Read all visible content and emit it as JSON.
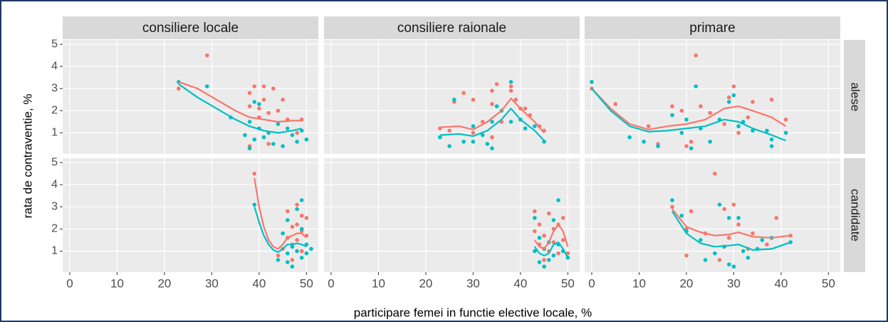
{
  "chart_data": {
    "type": "scatter",
    "x_label": "participare femei in functie elective locale, %",
    "y_label": "rata de contraventie, %",
    "columns": [
      "consiliere locale",
      "consiliere raionale",
      "primare"
    ],
    "rows": [
      "alese",
      "candidate"
    ],
    "xlim": [
      -1.5,
      52.5
    ],
    "xticks": [
      0,
      10,
      20,
      30,
      40,
      50
    ],
    "ylim": [
      0.05,
      5.2
    ],
    "yticks": [
      1,
      2,
      3,
      4,
      5
    ],
    "grid": true,
    "panels": [
      [
        {
          "points": [
            {
              "color": "#F8766D",
              "x": [
                23,
                29,
                38,
                38,
                39,
                40,
                40,
                41,
                41,
                42,
                43,
                44,
                45,
                46,
                48,
                49,
                38,
                42
              ],
              "values": [
                3.0,
                4.5,
                2.8,
                2.2,
                3.1,
                2.1,
                1.7,
                3.1,
                2.5,
                1.9,
                3.0,
                2.0,
                2.5,
                1.6,
                1.0,
                1.6,
                0.4,
                0.5
              ]
            },
            {
              "color": "#00BFC4",
              "x": [
                23,
                29,
                34,
                37,
                38,
                38,
                39,
                39,
                40,
                40,
                41,
                42,
                43,
                44,
                45,
                46,
                47,
                48,
                49,
                50
              ],
              "values": [
                3.3,
                3.1,
                1.7,
                0.9,
                0.3,
                1.5,
                2.4,
                0.7,
                2.3,
                1.2,
                0.8,
                1.0,
                0.5,
                1.4,
                0.4,
                1.2,
                0.9,
                0.6,
                1.1,
                0.7
              ]
            }
          ],
          "smooth": [
            {
              "color": "#F8766D",
              "x": [
                23,
                27,
                31,
                35,
                38,
                41,
                44,
                47,
                49
              ],
              "values": [
                3.3,
                3.0,
                2.5,
                2.0,
                1.7,
                1.6,
                1.5,
                1.55,
                1.55
              ]
            },
            {
              "color": "#00BFC4",
              "x": [
                23,
                27,
                31,
                35,
                38,
                41,
                44,
                47,
                49
              ],
              "values": [
                3.2,
                2.6,
                2.1,
                1.6,
                1.3,
                1.1,
                1.0,
                1.1,
                1.2
              ]
            }
          ]
        },
        {
          "points": [
            {
              "color": "#F8766D",
              "x": [
                23,
                25,
                26,
                28,
                30,
                30,
                32,
                34,
                34,
                34,
                35,
                36,
                38,
                38,
                39,
                40,
                41,
                42,
                44,
                45
              ],
              "values": [
                1.2,
                1.1,
                2.4,
                2.8,
                1.0,
                2.5,
                1.5,
                2.9,
                2.3,
                0.8,
                3.2,
                1.5,
                3.1,
                2.9,
                2.5,
                2.1,
                2.1,
                1.8,
                1.3,
                1.1
              ]
            },
            {
              "color": "#00BFC4",
              "x": [
                23,
                25,
                26,
                28,
                30,
                30,
                32,
                33,
                34,
                34,
                35,
                36,
                38,
                38,
                40,
                41,
                43,
                45
              ],
              "values": [
                0.8,
                0.4,
                2.5,
                0.6,
                0.6,
                1.3,
                0.9,
                0.5,
                0.3,
                1.5,
                2.2,
                2.0,
                3.3,
                1.5,
                1.6,
                1.2,
                1.3,
                0.6
              ]
            }
          ],
          "smooth": [
            {
              "color": "#F8766D",
              "x": [
                23,
                27,
                30,
                33,
                36,
                38,
                40,
                43,
                45
              ],
              "values": [
                1.25,
                1.3,
                1.15,
                1.5,
                2.0,
                2.55,
                2.1,
                1.5,
                1.0
              ]
            },
            {
              "color": "#00BFC4",
              "x": [
                23,
                27,
                30,
                33,
                36,
                38,
                40,
                43,
                45
              ],
              "values": [
                0.9,
                0.95,
                0.85,
                1.1,
                1.6,
                2.1,
                1.6,
                1.1,
                0.65
              ]
            }
          ]
        },
        {
          "points": [
            {
              "color": "#F8766D",
              "x": [
                0,
                5,
                12,
                14,
                17,
                19,
                20,
                21,
                22,
                23,
                25,
                28,
                29,
                30,
                31,
                33,
                34,
                38,
                41
              ],
              "values": [
                3.0,
                2.3,
                1.3,
                0.5,
                2.2,
                2.0,
                0.4,
                0.6,
                4.5,
                2.2,
                1.9,
                1.4,
                2.6,
                3.1,
                1.0,
                1.7,
                2.4,
                2.5,
                1.6
              ]
            },
            {
              "color": "#00BFC4",
              "x": [
                0,
                8,
                11,
                14,
                17,
                19,
                20,
                21,
                22,
                23,
                25,
                27,
                29,
                30,
                31,
                32,
                34,
                37,
                38,
                38,
                41
              ],
              "values": [
                3.3,
                0.8,
                0.6,
                0.4,
                1.8,
                1.0,
                1.6,
                0.3,
                3.1,
                1.2,
                0.6,
                1.6,
                2.4,
                2.7,
                1.3,
                1.5,
                1.1,
                1.1,
                0.4,
                0.7,
                1.0
              ]
            }
          ],
          "smooth": [
            {
              "color": "#F8766D",
              "x": [
                0,
                4,
                8,
                12,
                16,
                20,
                24,
                28,
                31,
                34,
                38,
                41
              ],
              "values": [
                3.0,
                2.1,
                1.4,
                1.15,
                1.3,
                1.4,
                1.6,
                2.1,
                2.2,
                2.0,
                1.7,
                1.3
              ]
            },
            {
              "color": "#00BFC4",
              "x": [
                0,
                4,
                8,
                12,
                16,
                20,
                24,
                28,
                31,
                34,
                38,
                41
              ],
              "values": [
                3.0,
                2.0,
                1.3,
                1.05,
                1.1,
                1.2,
                1.3,
                1.6,
                1.5,
                1.2,
                0.9,
                0.65
              ]
            }
          ]
        }
      ],
      [
        {
          "points": [
            {
              "color": "#F8766D",
              "x": [
                39,
                44,
                45,
                46,
                46,
                47,
                47,
                47,
                48,
                48,
                48,
                49,
                49,
                49,
                50,
                50
              ],
              "values": [
                4.5,
                0.8,
                1.1,
                2.8,
                1.6,
                2.1,
                0.6,
                1.3,
                3.1,
                2.2,
                1.5,
                1.9,
                2.6,
                1.0,
                1.7,
                2.5
              ]
            },
            {
              "color": "#00BFC4",
              "x": [
                39,
                44,
                45,
                46,
                46,
                46,
                47,
                47,
                48,
                48,
                49,
                49,
                49,
                50,
                50,
                51
              ],
              "values": [
                3.1,
                0.6,
                1.8,
                2.4,
                0.5,
                0.9,
                1.2,
                0.3,
                1.0,
                2.9,
                3.3,
                0.7,
                2.0,
                1.3,
                0.9,
                1.1
              ]
            }
          ],
          "smooth": [
            {
              "color": "#F8766D",
              "x": [
                39,
                40,
                41,
                42,
                43,
                44,
                45,
                46,
                47,
                48,
                49,
                50
              ],
              "values": [
                4.3,
                3.0,
                2.1,
                1.5,
                1.2,
                1.1,
                1.3,
                1.6,
                1.7,
                1.8,
                1.8,
                1.6
              ]
            },
            {
              "color": "#00BFC4",
              "x": [
                39,
                40,
                41,
                42,
                43,
                44,
                45,
                46,
                47,
                48,
                49,
                50
              ],
              "values": [
                3.0,
                2.3,
                1.7,
                1.3,
                1.05,
                0.95,
                1.1,
                1.3,
                1.3,
                1.35,
                1.3,
                1.2
              ]
            }
          ]
        },
        {
          "points": [
            {
              "color": "#F8766D",
              "x": [
                43,
                43,
                44,
                44,
                45,
                45,
                46,
                46,
                47,
                47,
                48,
                48,
                49,
                49,
                50
              ],
              "values": [
                2.8,
                1.9,
                1.3,
                2.2,
                0.6,
                1.7,
                2.7,
                1.0,
                1.4,
                2.0,
                2.2,
                0.9,
                2.5,
                1.5,
                0.9
              ]
            },
            {
              "color": "#00BFC4",
              "x": [
                43,
                43,
                44,
                44,
                45,
                45,
                46,
                46,
                47,
                47,
                48,
                48,
                49,
                50
              ],
              "values": [
                2.5,
                1.0,
                0.5,
                1.6,
                0.3,
                1.1,
                0.6,
                1.4,
                2.4,
                0.8,
                3.3,
                1.3,
                1.0,
                0.7
              ]
            }
          ],
          "smooth": [
            {
              "color": "#F8766D",
              "x": [
                43,
                44,
                45,
                46,
                47,
                48,
                49,
                50
              ],
              "values": [
                1.5,
                1.2,
                1.1,
                1.4,
                1.9,
                2.2,
                1.9,
                1.2
              ]
            },
            {
              "color": "#00BFC4",
              "x": [
                43,
                44,
                45,
                46,
                47,
                48,
                49,
                50
              ],
              "values": [
                1.2,
                0.9,
                0.8,
                0.9,
                1.3,
                1.4,
                1.1,
                0.7
              ]
            }
          ]
        },
        {
          "points": [
            {
              "color": "#F8766D",
              "x": [
                17,
                20,
                20,
                21,
                24,
                26,
                27,
                28,
                29,
                30,
                31,
                33,
                34,
                37,
                39,
                42
              ],
              "values": [
                3.0,
                2.0,
                0.8,
                2.8,
                1.8,
                4.5,
                0.6,
                2.9,
                1.6,
                3.1,
                2.2,
                1.1,
                1.8,
                1.3,
                2.5,
                1.7
              ]
            },
            {
              "color": "#00BFC4",
              "x": [
                17,
                19,
                20,
                23,
                24,
                26,
                27,
                28,
                29,
                29,
                30,
                31,
                32,
                33,
                35,
                36,
                38,
                42
              ],
              "values": [
                3.3,
                2.6,
                1.9,
                1.5,
                0.6,
                0.9,
                3.1,
                1.2,
                0.4,
                2.5,
                0.3,
                2.5,
                1.0,
                0.7,
                1.1,
                1.5,
                1.6,
                1.4
              ]
            }
          ],
          "smooth": [
            {
              "color": "#F8766D",
              "x": [
                17,
                20,
                23,
                26,
                29,
                31,
                34,
                38,
                42
              ],
              "values": [
                2.9,
                2.1,
                1.85,
                1.7,
                1.75,
                1.85,
                1.65,
                1.6,
                1.7
              ]
            },
            {
              "color": "#00BFC4",
              "x": [
                17,
                20,
                23,
                26,
                29,
                31,
                34,
                38,
                42
              ],
              "values": [
                2.8,
                1.8,
                1.35,
                1.2,
                1.25,
                1.3,
                1.05,
                1.1,
                1.4
              ]
            }
          ]
        }
      ]
    ]
  }
}
